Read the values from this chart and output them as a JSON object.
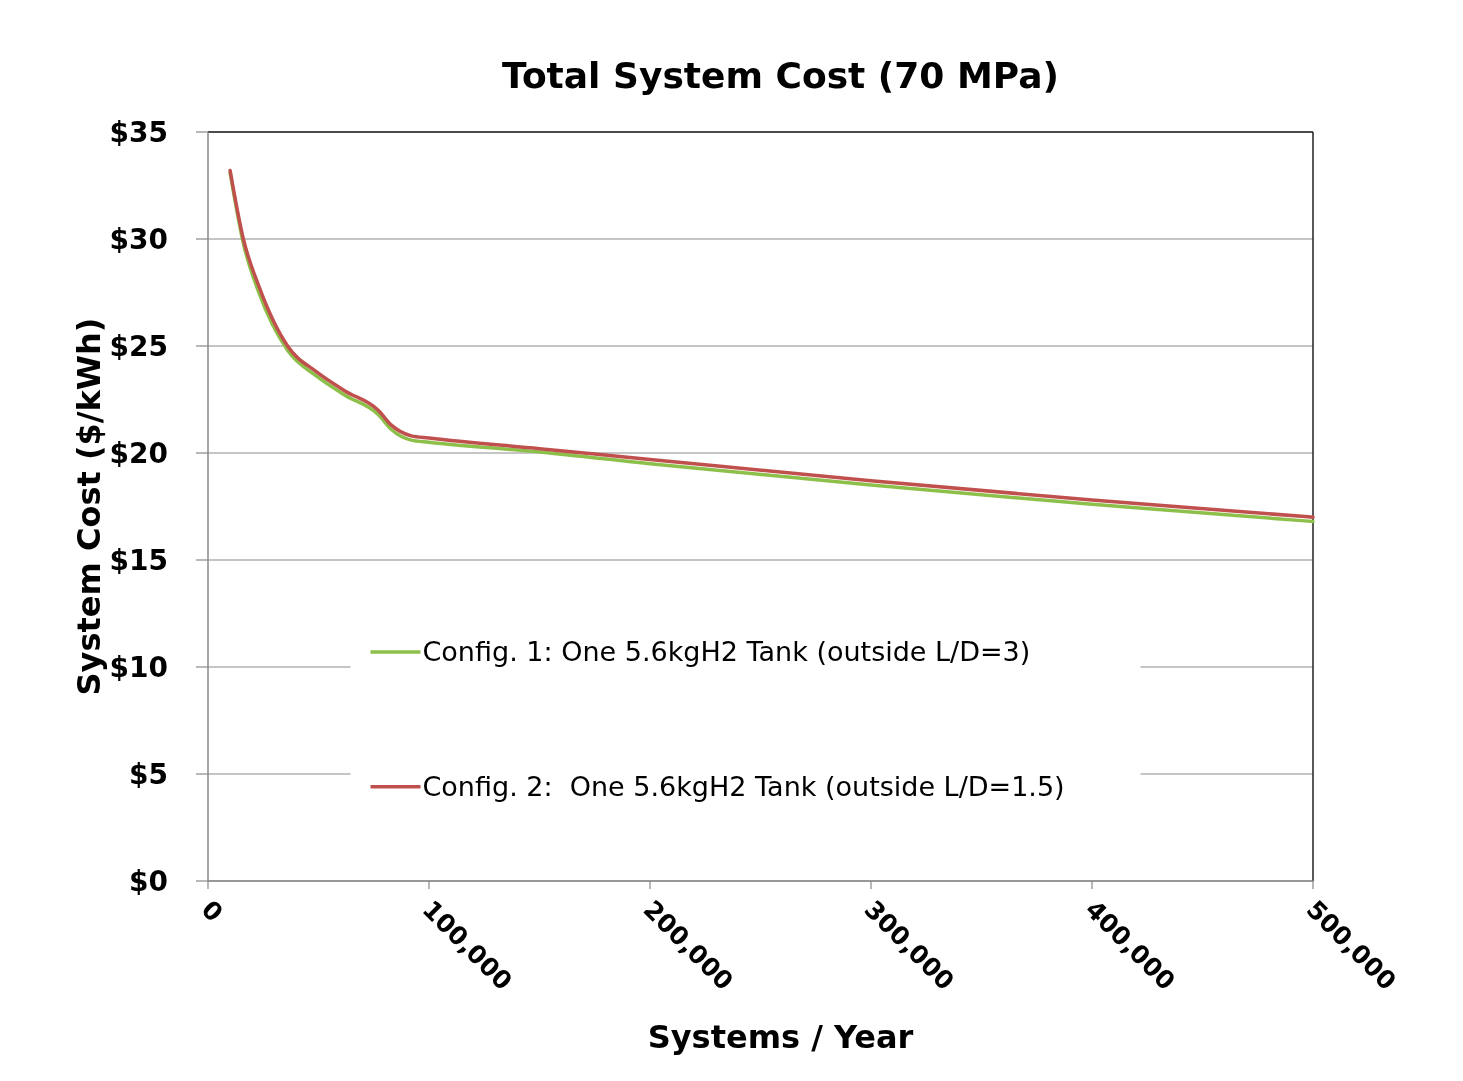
{
  "chart_data": {
    "type": "line",
    "title": "Total System Cost (70 MPa)",
    "xlabel": "Systems / Year",
    "ylabel": "System Cost ($/kWh)",
    "xlim": [
      0,
      500000
    ],
    "xticks": [
      {
        "value": 0,
        "label": "0"
      },
      {
        "value": 100000,
        "label": "100,000"
      },
      {
        "value": 200000,
        "label": "200,000"
      },
      {
        "value": 300000,
        "label": "300,000"
      },
      {
        "value": 400000,
        "label": "400,000"
      },
      {
        "value": 500000,
        "label": "500,000"
      }
    ],
    "ylim": [
      0,
      35
    ],
    "yticks": [
      {
        "value": 0,
        "label": "$0"
      },
      {
        "value": 5,
        "label": "$5"
      },
      {
        "value": 10,
        "label": "$10"
      },
      {
        "value": 15,
        "label": "$15"
      },
      {
        "value": 20,
        "label": "$20"
      },
      {
        "value": 25,
        "label": "$25"
      },
      {
        "value": 30,
        "label": "$30"
      },
      {
        "value": 35,
        "label": "$35"
      }
    ],
    "grid": "y",
    "legend": "bottom",
    "marker": "none",
    "line_style": "solid",
    "x": [
      10000,
      16000,
      23000,
      36000,
      49000,
      62000,
      77000,
      83000,
      92000,
      100000,
      150000,
      200000,
      300000,
      400000,
      500000
    ],
    "series": [
      {
        "name": "Config. 1: One 5.6kgH2 Tank (outside L/D=3)",
        "color": "#8dc04a",
        "values": [
          33.1,
          29.8,
          27.5,
          24.8,
          23.6,
          22.7,
          21.8,
          21.1,
          20.6,
          20.5,
          20.05,
          19.5,
          18.5,
          17.6,
          16.8
        ]
      },
      {
        "name": "Config. 2:  One 5.6kgH2 Tank (outside L/D=1.5)",
        "color": "#c0504d",
        "values": [
          33.2,
          30.0,
          27.8,
          25.0,
          23.8,
          22.9,
          22.0,
          21.3,
          20.8,
          20.7,
          20.2,
          19.7,
          18.7,
          17.8,
          17.0
        ]
      }
    ]
  }
}
